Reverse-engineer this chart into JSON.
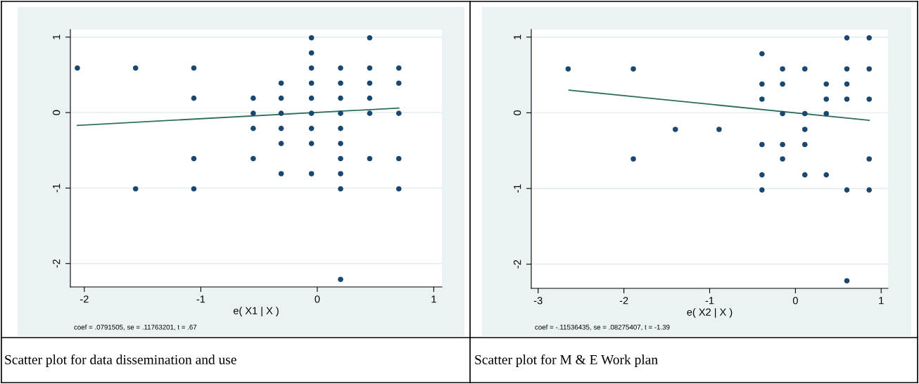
{
  "chart_data": [
    {
      "type": "scatter",
      "xlabel": "e( X1 | X )",
      "xlim": [
        -2.12,
        1.07
      ],
      "ylim": [
        -2.31,
        1.1
      ],
      "xticks": [
        -2,
        -1,
        0,
        1
      ],
      "yticks": [
        -2,
        -1,
        0,
        1
      ],
      "grid": "y",
      "annotations": [
        "coef = .0791505, se = .11763201, t = .67",
        "Scatter plot for data dissemination and use"
      ],
      "series": [
        {
          "marker": "circle",
          "color": "#1a476f",
          "x": [
            -2.06,
            -1.56,
            -1.56,
            -1.06,
            -1.06,
            -1.06,
            -1.06,
            -0.55,
            -0.55,
            -0.55,
            -0.55,
            -0.31,
            -0.31,
            -0.31,
            -0.31,
            -0.31,
            -0.31,
            -0.05,
            -0.05,
            -0.05,
            -0.05,
            -0.05,
            -0.05,
            -0.05,
            -0.05,
            -0.05,
            0.2,
            0.2,
            0.2,
            0.2,
            0.2,
            0.2,
            0.2,
            0.2,
            0.2,
            0.2,
            0.45,
            0.45,
            0.45,
            0.45,
            0.45,
            0.45,
            0.7,
            0.7,
            0.7,
            0.7,
            0.7
          ],
          "values": [
            0.59,
            0.59,
            -1.01,
            0.59,
            0.19,
            -0.61,
            -1.01,
            0.19,
            -0.01,
            -0.21,
            -0.61,
            0.39,
            0.19,
            -0.01,
            -0.21,
            -0.41,
            -0.81,
            0.99,
            0.79,
            0.59,
            0.39,
            0.19,
            -0.01,
            -0.21,
            -0.41,
            -0.81,
            0.59,
            0.39,
            0.19,
            -0.01,
            -0.21,
            -0.41,
            -0.61,
            -0.81,
            -1.01,
            -2.21,
            0.99,
            0.59,
            0.39,
            0.19,
            -0.01,
            -0.61,
            0.59,
            0.39,
            -0.01,
            -0.61,
            -1.01
          ]
        },
        {
          "type": "line",
          "color": "#2e6e5e",
          "x": [
            -2.06,
            0.7
          ],
          "values": [
            -0.17,
            0.06
          ]
        }
      ]
    },
    {
      "type": "scatter",
      "xlabel": "e( X2 | X )",
      "xlim": [
        -3.08,
        1.08
      ],
      "ylim": [
        -2.32,
        1.1
      ],
      "xticks": [
        -3,
        -2,
        -1,
        0,
        1
      ],
      "yticks": [
        -2,
        -1,
        0,
        1
      ],
      "grid": "y",
      "annotations": [
        "coef = -.11536435, se = .08275407, t = -1.39",
        "Scatter plot for M & E Work plan"
      ],
      "series": [
        {
          "marker": "circle",
          "color": "#1a476f",
          "x": [
            -2.65,
            -1.89,
            -1.89,
            -1.4,
            -0.89,
            -0.39,
            -0.39,
            -0.39,
            -0.39,
            -0.39,
            -0.39,
            -0.15,
            -0.15,
            -0.15,
            -0.15,
            -0.15,
            0.11,
            0.11,
            0.11,
            0.11,
            0.11,
            0.36,
            0.36,
            0.36,
            0.36,
            0.6,
            0.6,
            0.6,
            0.6,
            0.6,
            0.6,
            0.86,
            0.86,
            0.86,
            0.86,
            0.86
          ],
          "values": [
            0.58,
            0.58,
            -0.61,
            -0.22,
            -0.22,
            0.78,
            0.38,
            0.18,
            -0.42,
            -0.82,
            -1.02,
            0.58,
            0.38,
            -0.01,
            -0.42,
            -0.61,
            0.58,
            -0.01,
            -0.22,
            -0.42,
            -0.82,
            0.38,
            0.18,
            -0.01,
            -0.82,
            0.99,
            0.58,
            0.38,
            0.18,
            -1.02,
            -2.22,
            0.99,
            0.58,
            0.18,
            -0.61,
            -1.02
          ]
        },
        {
          "type": "line",
          "color": "#2e6e5e",
          "x": [
            -2.64,
            0.86
          ],
          "values": [
            0.3,
            -0.1
          ]
        }
      ]
    }
  ]
}
